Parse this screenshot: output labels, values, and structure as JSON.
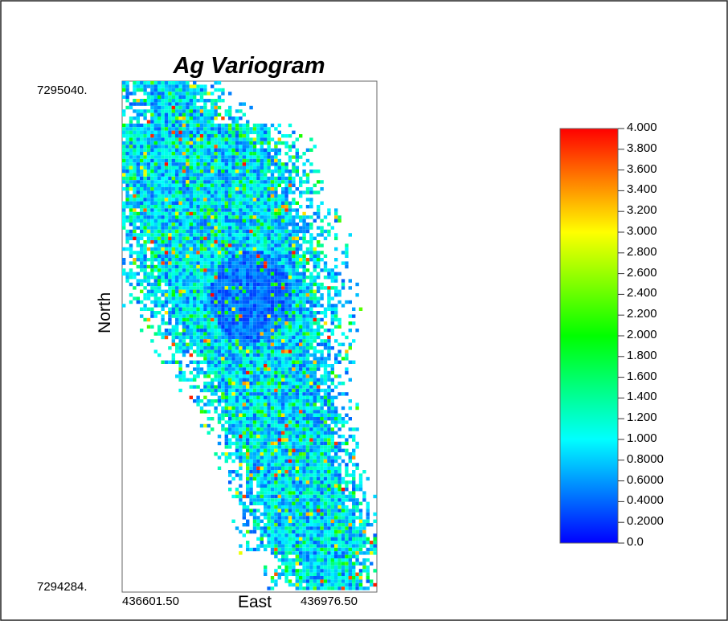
{
  "chart_data": {
    "type": "heatmap",
    "title": "Ag Variogram",
    "xlabel": "East",
    "ylabel": "North",
    "x_ticks": [
      "436601.50",
      "436976.50"
    ],
    "y_ticks": [
      "7295040.",
      "7294284."
    ],
    "xlim": [
      436601.5,
      436976.5
    ],
    "ylim": [
      7294284,
      7295040
    ],
    "colorbar": {
      "min": 0.0,
      "max": 4.0,
      "colormap": "rainbow (blue-cyan-green-yellow-red)",
      "tick_labels": [
        "4.000",
        "3.800",
        "3.600",
        "3.400",
        "3.200",
        "3.000",
        "2.800",
        "2.600",
        "2.400",
        "2.200",
        "2.000",
        "1.800",
        "1.600",
        "1.400",
        "1.200",
        "1.000",
        "0.8000",
        "0.6000",
        "0.4000",
        "0.2000",
        "0.0"
      ],
      "tick_values": [
        4.0,
        3.8,
        3.6,
        3.4,
        3.2,
        3.0,
        2.8,
        2.6,
        2.4,
        2.2,
        2.0,
        1.8,
        1.6,
        1.4,
        1.2,
        1.0,
        0.8,
        0.6,
        0.4,
        0.2,
        0.0
      ]
    },
    "colors": {
      "low": "#0000ff",
      "mid_low": "#00ffff",
      "mid": "#00ff00",
      "mid_high": "#ffff00",
      "high": "#ff0000"
    },
    "description_values": "Scattered variogram cells forming a NW-SE elongated cloud; values mostly 0.2-1.2 (blue/cyan) with sparse green, yellow and red (2.0-4.0) cells."
  }
}
